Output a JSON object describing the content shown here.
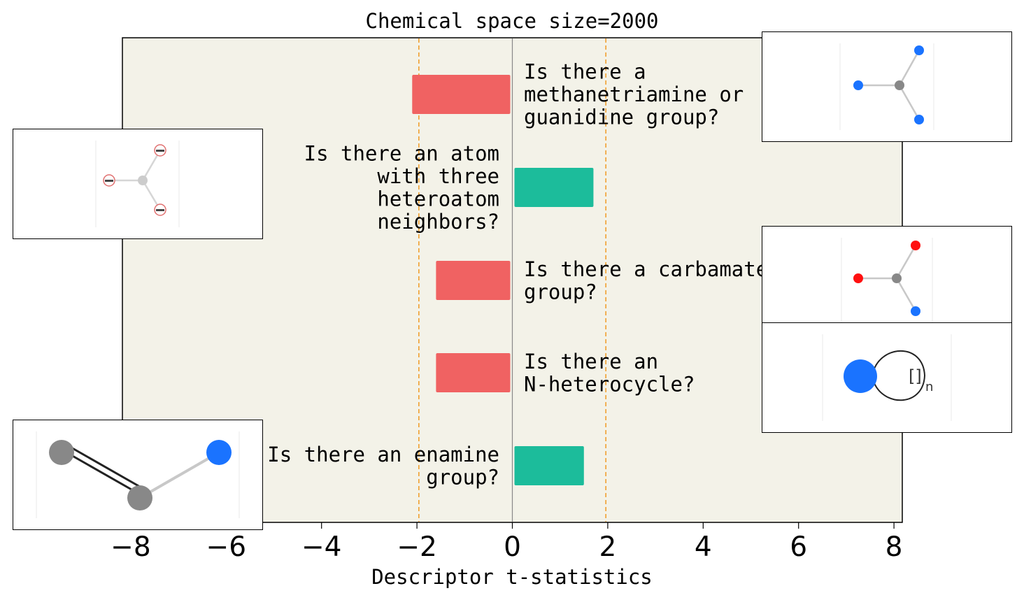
{
  "chart_data": {
    "type": "bar",
    "orientation": "horizontal",
    "title": "Chemical space size=2000",
    "xlabel": "Descriptor t-statistics",
    "ylabel": "",
    "xlim": [
      -8.2,
      8.2
    ],
    "xticks": [
      "−8",
      "−6",
      "−4",
      "−2",
      "0",
      "2",
      "4",
      "6",
      "8"
    ],
    "xtick_values": [
      -8,
      -6,
      -4,
      -2,
      0,
      2,
      4,
      6,
      8
    ],
    "threshold_lines": [
      -1.96,
      1.96
    ],
    "grid": false,
    "background_color": "#f3f2e8",
    "colors": {
      "negative": "#f06262",
      "positive": "#1cbc9b",
      "threshold": "#f0a030",
      "zero_line": "#888888"
    },
    "categories": [
      "Is there a\nmethanetriamine or\nguanidine group?",
      "Is there an atom\nwith three\nheteroatom\nneighbors?",
      "Is there a carbamate\ngroup?",
      "Is there an\nN-heterocycle?",
      "Is there an enamine\ngroup?"
    ],
    "values": [
      -2.1,
      1.7,
      -1.6,
      -1.6,
      1.5
    ]
  },
  "insets": [
    {
      "name": "methanetriamine-structure",
      "atoms": [
        "blue",
        "gray",
        "blue",
        "blue"
      ]
    },
    {
      "name": "three-heteroatom-neighbors-structure",
      "atoms": [
        "wildcard",
        "lightgray",
        "wildcard",
        "wildcard"
      ]
    },
    {
      "name": "carbamate-structure",
      "atoms": [
        "red",
        "gray",
        "red",
        "blue"
      ]
    },
    {
      "name": "n-heterocycle-structure",
      "atoms": [
        "blue"
      ],
      "ring_label": "[]",
      "ring_subscript": "n"
    },
    {
      "name": "enamine-structure",
      "atoms": [
        "gray",
        "gray",
        "blue"
      ]
    }
  ]
}
